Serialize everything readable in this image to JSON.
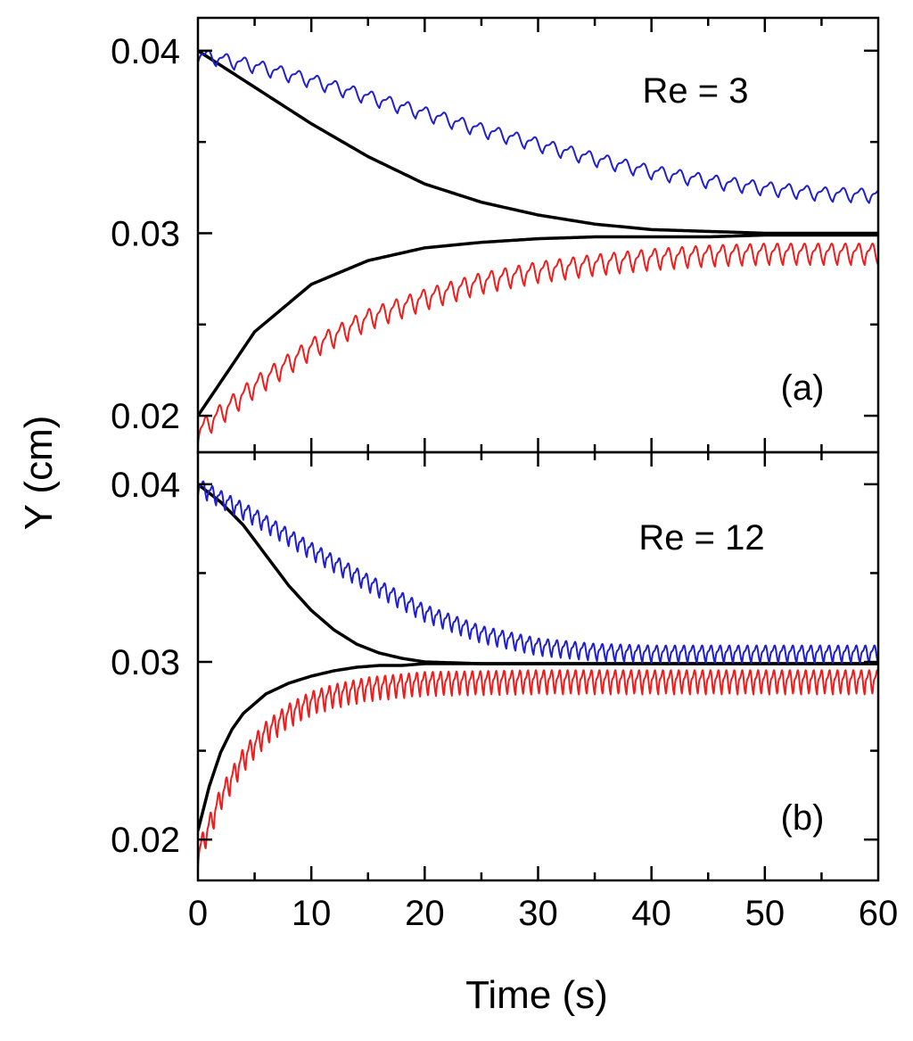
{
  "figure": {
    "ylabel": "Y (cm)",
    "xlabel": "Time (s)"
  },
  "chart_data": [
    {
      "type": "line",
      "panel_label": "(a)",
      "annotation": "Re = 3",
      "xlim": [
        0,
        60
      ],
      "ylim": [
        0.018,
        0.0418
      ],
      "x_ticks": [
        0,
        10,
        20,
        30,
        40,
        50,
        60
      ],
      "x_tick_labels": [
        "",
        "",
        "",
        "",
        "",
        "",
        ""
      ],
      "y_ticks": [
        0.02,
        0.03,
        0.04
      ],
      "y_tick_labels": [
        "0.02",
        "0.03",
        "0.04"
      ],
      "colors": {
        "upper_oscillating": "#1f1fcf",
        "lower_oscillating": "#f01c1c",
        "smooth": "#000000"
      },
      "series": [
        {
          "name": "upper smooth",
          "color": "#000000",
          "x": [
            0,
            5,
            10,
            15,
            20,
            25,
            30,
            35,
            40,
            45,
            50,
            55,
            60
          ],
          "y": [
            0.04,
            0.038,
            0.036,
            0.0342,
            0.0327,
            0.0317,
            0.031,
            0.0305,
            0.0302,
            0.0301,
            0.03,
            0.03,
            0.03
          ]
        },
        {
          "name": "lower smooth",
          "color": "#000000",
          "x": [
            0,
            5,
            10,
            15,
            20,
            25,
            30,
            35,
            40,
            45,
            50,
            55,
            60
          ],
          "y": [
            0.02,
            0.0246,
            0.0272,
            0.0285,
            0.0292,
            0.0295,
            0.0297,
            0.0298,
            0.0298,
            0.0298,
            0.0299,
            0.0299,
            0.0299
          ]
        },
        {
          "name": "upper oscillating",
          "color": "#1f1fcf",
          "x": [
            0,
            5,
            10,
            15,
            20,
            25,
            30,
            35,
            40,
            45,
            50,
            55,
            60
          ],
          "y": [
            0.0397,
            0.0391,
            0.0383,
            0.0374,
            0.0365,
            0.0356,
            0.0348,
            0.034,
            0.0333,
            0.0328,
            0.0324,
            0.0321,
            0.032
          ],
          "oscillation_amplitude": 0.0004,
          "oscillation_period_s": 1.6
        },
        {
          "name": "lower oscillating",
          "color": "#f01c1c",
          "x": [
            0,
            5,
            10,
            15,
            20,
            25,
            30,
            35,
            40,
            45,
            50,
            55,
            60
          ],
          "y": [
            0.019,
            0.0215,
            0.0236,
            0.0252,
            0.0263,
            0.0272,
            0.0278,
            0.0282,
            0.0285,
            0.0287,
            0.0288,
            0.0288,
            0.0288
          ],
          "oscillation_amplitude": 0.0006,
          "oscillation_period_s": 1.2
        }
      ]
    },
    {
      "type": "line",
      "panel_label": "(b)",
      "annotation": "Re = 12",
      "xlim": [
        0,
        60
      ],
      "ylim": [
        0.0177,
        0.0418
      ],
      "x_ticks": [
        0,
        10,
        20,
        30,
        40,
        50,
        60
      ],
      "x_tick_labels": [
        "0",
        "10",
        "20",
        "30",
        "40",
        "50",
        "60"
      ],
      "y_ticks": [
        0.02,
        0.03,
        0.04
      ],
      "y_tick_labels": [
        "0.02",
        "0.03",
        "0.04"
      ],
      "colors": {
        "upper_oscillating": "#1f1fcf",
        "lower_oscillating": "#f01c1c",
        "smooth": "#000000"
      },
      "series": [
        {
          "name": "upper smooth",
          "color": "#000000",
          "x": [
            0,
            2,
            4,
            6,
            8,
            10,
            12,
            14,
            16,
            18,
            20,
            25,
            30,
            40,
            50,
            60
          ],
          "y": [
            0.04,
            0.039,
            0.0377,
            0.036,
            0.0343,
            0.0329,
            0.0318,
            0.031,
            0.0305,
            0.0302,
            0.03,
            0.0299,
            0.0299,
            0.0299,
            0.0299,
            0.0299
          ]
        },
        {
          "name": "lower smooth",
          "color": "#000000",
          "x": [
            0,
            1,
            2,
            3,
            4,
            6,
            8,
            10,
            12,
            14,
            16,
            18,
            20,
            25,
            30,
            40,
            50,
            60
          ],
          "y": [
            0.0205,
            0.023,
            0.0249,
            0.0262,
            0.0271,
            0.0282,
            0.0288,
            0.0292,
            0.0295,
            0.0297,
            0.0298,
            0.0298,
            0.0299,
            0.0299,
            0.0299,
            0.0299,
            0.0299,
            0.0299
          ]
        },
        {
          "name": "upper oscillating",
          "color": "#1f1fcf",
          "x": [
            0,
            5,
            10,
            15,
            20,
            25,
            30,
            35,
            40,
            45,
            50,
            55,
            60
          ],
          "y": [
            0.0398,
            0.0381,
            0.0362,
            0.0344,
            0.0327,
            0.0315,
            0.0308,
            0.0305,
            0.0304,
            0.0304,
            0.0304,
            0.0304,
            0.0304
          ],
          "oscillation_amplitude": 0.0005,
          "oscillation_period_s": 0.8
        },
        {
          "name": "lower oscillating",
          "color": "#f01c1c",
          "x": [
            0,
            2,
            4,
            6,
            8,
            10,
            12,
            15,
            20,
            30,
            40,
            50,
            60
          ],
          "y": [
            0.019,
            0.0222,
            0.0244,
            0.0259,
            0.0269,
            0.0276,
            0.028,
            0.0284,
            0.0287,
            0.0288,
            0.0288,
            0.0288,
            0.0288
          ],
          "oscillation_amplitude": 0.0007,
          "oscillation_period_s": 0.7
        }
      ]
    }
  ]
}
